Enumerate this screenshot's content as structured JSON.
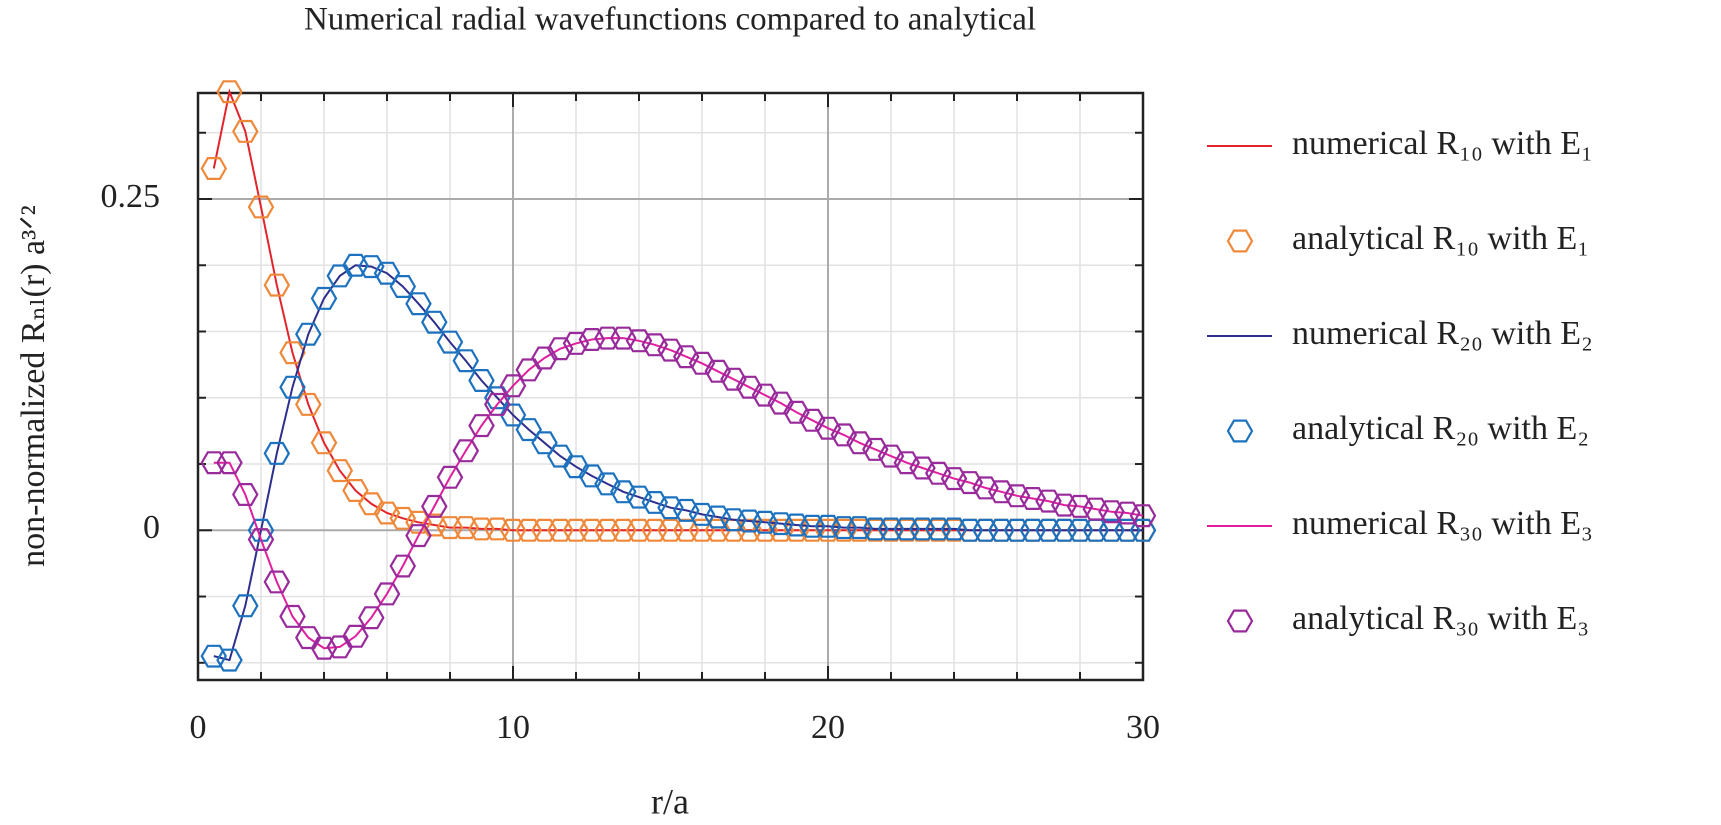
{
  "chart_data": {
    "type": "line",
    "title": "Numerical radial wavefunctions compared to analytical",
    "x_label": "r/a",
    "y_label": "non-normalized Rₙₗ(r) a³ᐟ²",
    "xlim": [
      0,
      30
    ],
    "xticks": [
      0,
      10,
      20,
      30
    ],
    "xminorticks": [
      2,
      4,
      6,
      8,
      12,
      14,
      16,
      18,
      22,
      24,
      26,
      28
    ],
    "ylim": [
      -0.113,
      0.33
    ],
    "yticks": [
      0,
      0.25
    ],
    "yminorticks": [
      -0.1,
      -0.05,
      0.05,
      0.1,
      0.15,
      0.2,
      0.3
    ],
    "grid": true,
    "legend": "outside right",
    "x": [
      0.5,
      1,
      1.5,
      2,
      2.5,
      3,
      3.5,
      4,
      4.5,
      5,
      5.5,
      6,
      6.5,
      7,
      7.5,
      8,
      8.5,
      9,
      9.5,
      10,
      10.5,
      11,
      11.5,
      12,
      12.5,
      13,
      13.5,
      14,
      14.5,
      15,
      15.5,
      16,
      16.5,
      17,
      17.5,
      18,
      18.5,
      19,
      19.5,
      20,
      20.5,
      21,
      21.5,
      22,
      22.5,
      23,
      23.5,
      24,
      24.5,
      25,
      25.5,
      26,
      26.5,
      27,
      27.5,
      28,
      28.5,
      29,
      29.5,
      30
    ],
    "series": [
      {
        "name": "numerical R₁₀ with E₁",
        "color": "#e3242b",
        "style": "line",
        "values": [
          0.273,
          0.331,
          0.301,
          0.244,
          0.185,
          0.134,
          0.095,
          0.066,
          0.045,
          0.03,
          0.02,
          0.013,
          0.009,
          0.006,
          0.004,
          0.002,
          0.002,
          0.001,
          0.001,
          0,
          0,
          0,
          0,
          0,
          0,
          0,
          0,
          0,
          0,
          0,
          0,
          0,
          0,
          0,
          0,
          0,
          0,
          0,
          0,
          0,
          0,
          0,
          0,
          0,
          0,
          0,
          0,
          0,
          0,
          0,
          0,
          0,
          0,
          0,
          0,
          0,
          0,
          0,
          0,
          0
        ]
      },
      {
        "name": "analytical R₁₀ with E₁",
        "color": "#f0883a",
        "style": "marker",
        "values": [
          0.273,
          0.331,
          0.301,
          0.244,
          0.185,
          0.134,
          0.095,
          0.066,
          0.045,
          0.03,
          0.02,
          0.013,
          0.009,
          0.006,
          0.004,
          0.002,
          0.002,
          0.001,
          0.001,
          0,
          0,
          0,
          0,
          0,
          0,
          0,
          0,
          0,
          0,
          0,
          0,
          0,
          0,
          0,
          0,
          0,
          0,
          0,
          0,
          0,
          0,
          0,
          0,
          0,
          0,
          0,
          0,
          0,
          0,
          0,
          0,
          0,
          0,
          0,
          0,
          0,
          0,
          0,
          0,
          0
        ]
      },
      {
        "name": "numerical R₂₀ with E₂",
        "color": "#2d2f8e",
        "style": "line",
        "values": [
          -0.095,
          -0.098,
          -0.057,
          0,
          0.058,
          0.108,
          0.148,
          0.175,
          0.192,
          0.2,
          0.199,
          0.194,
          0.184,
          0.171,
          0.157,
          0.142,
          0.128,
          0.113,
          0.1,
          0.087,
          0.076,
          0.066,
          0.056,
          0.048,
          0.041,
          0.035,
          0.029,
          0.025,
          0.021,
          0.017,
          0.015,
          0.012,
          0.01,
          0.008,
          0.007,
          0.006,
          0.005,
          0.004,
          0.003,
          0.003,
          0.002,
          0.002,
          0.001,
          0.001,
          0.001,
          0.001,
          0.001,
          0.001,
          0,
          0,
          0,
          0,
          0,
          0,
          0,
          0,
          0,
          0,
          0,
          0
        ]
      },
      {
        "name": "analytical R₂₀ with E₂",
        "color": "#1d72bf",
        "style": "marker",
        "values": [
          -0.095,
          -0.098,
          -0.057,
          0,
          0.058,
          0.108,
          0.148,
          0.175,
          0.192,
          0.2,
          0.199,
          0.194,
          0.184,
          0.171,
          0.157,
          0.142,
          0.128,
          0.113,
          0.1,
          0.087,
          0.076,
          0.066,
          0.056,
          0.048,
          0.041,
          0.035,
          0.029,
          0.025,
          0.021,
          0.017,
          0.015,
          0.012,
          0.01,
          0.008,
          0.007,
          0.006,
          0.005,
          0.004,
          0.003,
          0.003,
          0.002,
          0.002,
          0.001,
          0.001,
          0.001,
          0.001,
          0.001,
          0.001,
          0,
          0,
          0,
          0,
          0,
          0,
          0,
          0,
          0,
          0,
          0,
          0
        ]
      },
      {
        "name": "numerical R₃₀ with E₃",
        "color": "#e01f9f",
        "style": "line",
        "values": [
          0.051,
          0.051,
          0.027,
          -0.007,
          -0.039,
          -0.065,
          -0.081,
          -0.089,
          -0.088,
          -0.08,
          -0.066,
          -0.048,
          -0.027,
          -0.004,
          0.018,
          0.04,
          0.06,
          0.079,
          0.095,
          0.109,
          0.121,
          0.13,
          0.137,
          0.141,
          0.144,
          0.145,
          0.145,
          0.143,
          0.14,
          0.136,
          0.131,
          0.126,
          0.12,
          0.114,
          0.108,
          0.102,
          0.096,
          0.089,
          0.083,
          0.077,
          0.072,
          0.066,
          0.061,
          0.056,
          0.051,
          0.047,
          0.043,
          0.039,
          0.036,
          0.032,
          0.029,
          0.026,
          0.024,
          0.022,
          0.019,
          0.018,
          0.016,
          0.014,
          0.013,
          0.011
        ]
      },
      {
        "name": "analytical R₃₀ with E₃",
        "color": "#982a9c",
        "style": "marker",
        "values": [
          0.051,
          0.051,
          0.027,
          -0.007,
          -0.039,
          -0.065,
          -0.081,
          -0.089,
          -0.088,
          -0.08,
          -0.066,
          -0.048,
          -0.027,
          -0.004,
          0.018,
          0.04,
          0.06,
          0.079,
          0.095,
          0.109,
          0.121,
          0.13,
          0.137,
          0.141,
          0.144,
          0.145,
          0.145,
          0.143,
          0.14,
          0.136,
          0.131,
          0.126,
          0.12,
          0.114,
          0.108,
          0.102,
          0.096,
          0.089,
          0.083,
          0.077,
          0.072,
          0.066,
          0.061,
          0.056,
          0.051,
          0.047,
          0.043,
          0.039,
          0.036,
          0.032,
          0.029,
          0.026,
          0.024,
          0.022,
          0.019,
          0.018,
          0.016,
          0.014,
          0.013,
          0.011
        ]
      }
    ]
  }
}
